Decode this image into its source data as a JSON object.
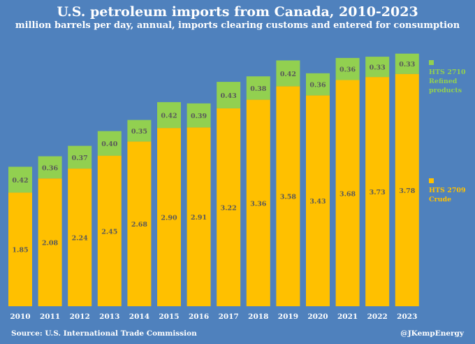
{
  "chart_data": {
    "type": "bar",
    "stacked": true,
    "title": "U.S. petroleum imports from Canada, 2010-2023",
    "subtitle": "million barrels per day, annual, imports clearing customs and entered for consumption",
    "categories": [
      "2010",
      "2011",
      "2012",
      "2013",
      "2014",
      "2015",
      "2016",
      "2017",
      "2018",
      "2019",
      "2020",
      "2021",
      "2022",
      "2023"
    ],
    "series": [
      {
        "name": "HTS 2709 Crude",
        "color": "#ffc000",
        "values": [
          1.85,
          2.08,
          2.24,
          2.45,
          2.68,
          2.9,
          2.91,
          3.22,
          3.36,
          3.58,
          3.43,
          3.68,
          3.73,
          3.78
        ],
        "labels": [
          "1.85",
          "2.08",
          "2.24",
          "2.45",
          "2.68",
          "2.90",
          "2.91",
          "3.22",
          "3.36",
          "3.58",
          "3.43",
          "3.68",
          "3.73",
          "3.78"
        ]
      },
      {
        "name": "HTS 2710 Refined products",
        "color": "#92d050",
        "values": [
          0.42,
          0.36,
          0.37,
          0.4,
          0.35,
          0.42,
          0.39,
          0.43,
          0.38,
          0.42,
          0.36,
          0.36,
          0.33,
          0.33
        ],
        "labels": [
          "0.42",
          "0.36",
          "0.37",
          "0.40",
          "0.35",
          "0.42",
          "0.39",
          "0.43",
          "0.38",
          "0.42",
          "0.36",
          "0.36",
          "0.33",
          "0.33"
        ]
      }
    ],
    "xlabel": "",
    "ylabel": "",
    "ylim": [
      0,
      4.3
    ],
    "grid": false,
    "legend": "right"
  },
  "source": "Source: U.S. International Trade Commission",
  "handle": "@JKempEnergy",
  "legend": {
    "refined_label": "HTS 2710 Refined products",
    "crude_label": "HTS 2709 Crude"
  }
}
